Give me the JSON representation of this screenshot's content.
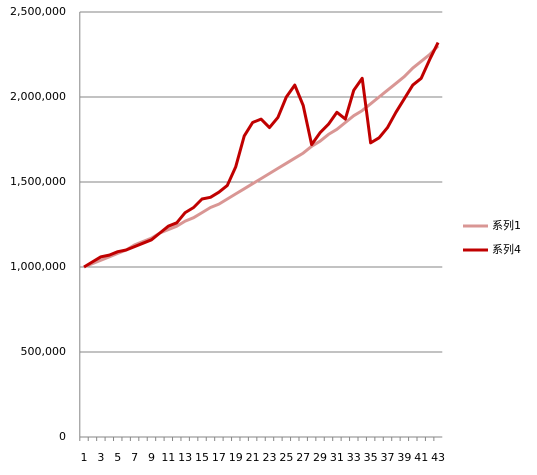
{
  "chart_data": {
    "type": "line",
    "categories": [
      1,
      null,
      3,
      null,
      5,
      null,
      7,
      null,
      9,
      null,
      11,
      null,
      13,
      null,
      15,
      null,
      17,
      null,
      19,
      null,
      21,
      null,
      23,
      null,
      25,
      null,
      27,
      null,
      29,
      null,
      31,
      null,
      33,
      null,
      35,
      null,
      37,
      null,
      39,
      null,
      41,
      null,
      43
    ],
    "series": [
      {
        "name": "系列1",
        "color": "#d99694",
        "values": [
          1000000,
          1020000,
          1040000,
          1060000,
          1080000,
          1100000,
          1130000,
          1150000,
          1170000,
          1200000,
          1220000,
          1240000,
          1270000,
          1290000,
          1320000,
          1350000,
          1370000,
          1400000,
          1430000,
          1460000,
          1490000,
          1520000,
          1550000,
          1580000,
          1610000,
          1640000,
          1670000,
          1710000,
          1740000,
          1780000,
          1810000,
          1850000,
          1890000,
          1920000,
          1960000,
          2000000,
          2040000,
          2080000,
          2120000,
          2170000,
          2210000,
          2250000,
          2300000
        ]
      },
      {
        "name": "系列4",
        "color": "#c00000",
        "values": [
          1000000,
          1030000,
          1060000,
          1070000,
          1090000,
          1100000,
          1120000,
          1140000,
          1160000,
          1200000,
          1240000,
          1260000,
          1320000,
          1350000,
          1400000,
          1410000,
          1440000,
          1480000,
          1590000,
          1770000,
          1850000,
          1870000,
          1820000,
          1880000,
          2000000,
          2070000,
          1950000,
          1720000,
          1790000,
          1840000,
          1910000,
          1870000,
          2040000,
          2110000,
          1730000,
          1760000,
          1820000,
          1910000,
          1990000,
          2070000,
          2110000,
          2220000,
          2320000
        ]
      }
    ],
    "ylim": [
      0,
      2500000
    ],
    "yticks": [
      0,
      {
        "value": 500000,
        "label": "500,000"
      },
      {
        "value": 1000000,
        "label": "1,000,000"
      },
      {
        "value": 1500000,
        "label": "1,500,000"
      },
      {
        "value": 2000000,
        "label": "2,000,000"
      },
      {
        "value": 2500000,
        "label": "2,500,000"
      }
    ],
    "grid": true,
    "legend": "right"
  }
}
